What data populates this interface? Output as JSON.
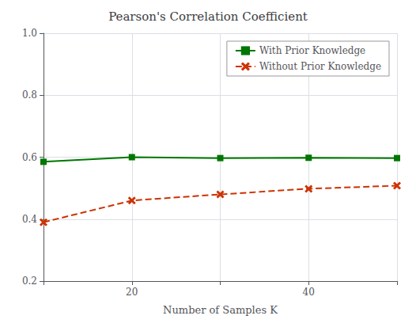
{
  "chart_data": {
    "type": "line",
    "title": "Pearson's Correlation Coefficient",
    "xlabel": "Number of Samples K",
    "x": [
      10,
      20,
      30,
      40,
      50
    ],
    "series": [
      {
        "name": "With Prior Knowledge",
        "color": "#007700",
        "marker": "square",
        "line_style": "solid",
        "values": [
          0.585,
          0.6,
          0.597,
          0.598,
          0.597
        ]
      },
      {
        "name": "Without Prior Knowledge",
        "color": "#CC3300",
        "marker": "x",
        "line_style": "dashed",
        "values": [
          0.39,
          0.46,
          0.48,
          0.498,
          0.508
        ]
      }
    ],
    "xlim": [
      10,
      50
    ],
    "xticks": [
      {
        "value": 10,
        "label": null
      },
      20,
      {
        "value": 30,
        "label": null
      },
      40,
      {
        "value": 50,
        "label": null
      }
    ],
    "ylim": [
      0.2,
      1.0
    ],
    "yticks": [
      0.2,
      0.4,
      0.6,
      0.8,
      {
        "value": 1.0,
        "label": "1.0"
      }
    ],
    "grid": true,
    "legend": "upper right"
  }
}
